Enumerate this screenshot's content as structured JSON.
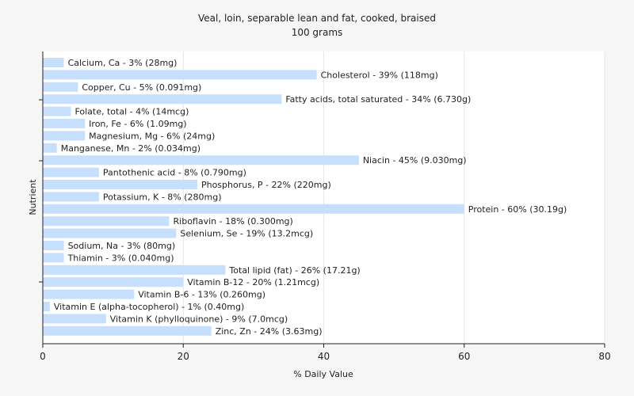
{
  "chart_data": {
    "type": "bar",
    "orientation": "horizontal",
    "title": "Veal, loin, separable lean and fat, cooked, braised",
    "subtitle": "100 grams",
    "xlabel": "% Daily Value",
    "ylabel": "Nutrient",
    "xlim": [
      0,
      80
    ],
    "xticks": [
      0,
      20,
      40,
      60,
      80
    ],
    "grid": true,
    "bar_color": "#c6dffc",
    "categories": [
      "Calcium, Ca",
      "Cholesterol",
      "Copper, Cu",
      "Fatty acids, total saturated",
      "Folate, total",
      "Iron, Fe",
      "Magnesium, Mg",
      "Manganese, Mn",
      "Niacin",
      "Pantothenic acid",
      "Phosphorus, P",
      "Potassium, K",
      "Protein",
      "Riboflavin",
      "Selenium, Se",
      "Sodium, Na",
      "Thiamin",
      "Total lipid (fat)",
      "Vitamin B-12",
      "Vitamin B-6",
      "Vitamin E (alpha-tocopherol)",
      "Vitamin K (phylloquinone)",
      "Zinc, Zn"
    ],
    "values": [
      3,
      39,
      5,
      34,
      4,
      6,
      6,
      2,
      45,
      8,
      22,
      8,
      60,
      18,
      19,
      3,
      3,
      26,
      20,
      13,
      1,
      9,
      24
    ],
    "labels": [
      "Calcium, Ca - 3% (28mg)",
      "Cholesterol - 39% (118mg)",
      "Copper, Cu - 5% (0.091mg)",
      "Fatty acids, total saturated - 34% (6.730g)",
      "Folate, total - 4% (14mcg)",
      "Iron, Fe - 6% (1.09mg)",
      "Magnesium, Mg - 6% (24mg)",
      "Manganese, Mn - 2% (0.034mg)",
      "Niacin - 45% (9.030mg)",
      "Pantothenic acid - 8% (0.790mg)",
      "Phosphorus, P - 22% (220mg)",
      "Potassium, K - 8% (280mg)",
      "Protein - 60% (30.19g)",
      "Riboflavin - 18% (0.300mg)",
      "Selenium, Se - 19% (13.2mcg)",
      "Sodium, Na - 3% (80mg)",
      "Thiamin - 3% (0.040mg)",
      "Total lipid (fat) - 26% (17.21g)",
      "Vitamin B-12 - 20% (1.21mcg)",
      "Vitamin B-6 - 13% (0.260mg)",
      "Vitamin E (alpha-tocopherol) - 1% (0.40mg)",
      "Vitamin K (phylloquinone) - 9% (7.0mcg)",
      "Zinc, Zn - 24% (3.63mg)"
    ]
  }
}
